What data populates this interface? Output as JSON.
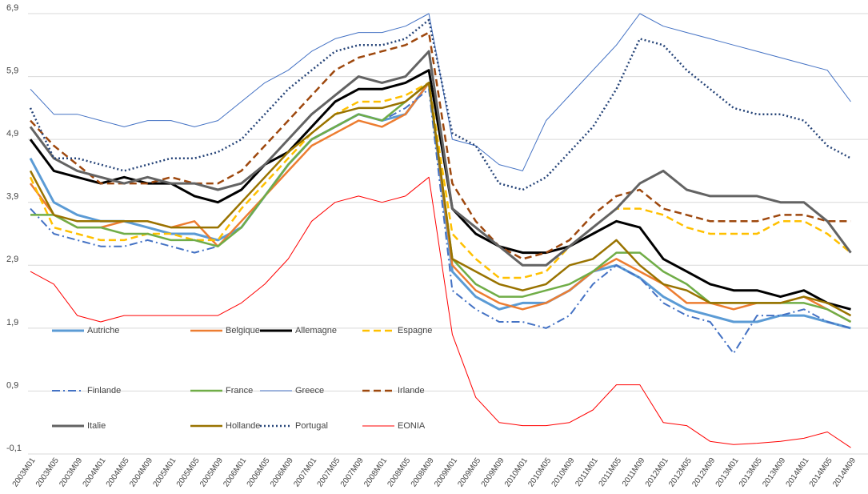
{
  "chart_data": {
    "type": "line",
    "categories": [
      "2003M01",
      "2003M05",
      "2003M09",
      "2004M01",
      "2004M05",
      "2004M09",
      "2005M01",
      "2005M05",
      "2005M09",
      "2006M01",
      "2006M05",
      "2006M09",
      "2007M01",
      "2007M05",
      "2007M09",
      "2008M01",
      "2008M05",
      "2008M09",
      "2009M01",
      "2009M05",
      "2009M09",
      "2010M01",
      "2010M05",
      "2010M09",
      "2011M01",
      "2011M05",
      "2011M09",
      "2012M01",
      "2012M05",
      "2012M09",
      "2013M01",
      "2013M05",
      "2013M09",
      "2014M01",
      "2014M05",
      "2014M09"
    ],
    "ylim": [
      -0.1,
      6.9
    ],
    "yticks": [
      {
        "value": -0.1,
        "label": "-0,1"
      },
      {
        "value": 0.9,
        "label": "0,9"
      },
      {
        "value": 1.9,
        "label": "1,9"
      },
      {
        "value": 2.9,
        "label": "2,9"
      },
      {
        "value": 3.9,
        "label": "3,9"
      },
      {
        "value": 4.9,
        "label": "4,9"
      },
      {
        "value": 5.9,
        "label": "5,9"
      },
      {
        "value": 6.9,
        "label": "6,9"
      }
    ],
    "grid": true,
    "series": [
      {
        "name": "Autriche",
        "color": "#5b9bd5",
        "width": 3,
        "dash": "solid",
        "values": [
          4.6,
          3.9,
          3.7,
          3.6,
          3.6,
          3.5,
          3.4,
          3.4,
          3.3,
          3.5,
          4.0,
          4.5,
          4.9,
          5.1,
          5.3,
          5.2,
          5.3,
          5.8,
          2.8,
          2.4,
          2.2,
          2.3,
          2.3,
          2.5,
          2.8,
          2.9,
          2.7,
          2.4,
          2.2,
          2.1,
          2.0,
          2.0,
          2.1,
          2.1,
          2.0,
          1.9
        ]
      },
      {
        "name": "Belgique",
        "color": "#ed7d31",
        "width": 2.5,
        "dash": "solid",
        "values": [
          4.2,
          3.7,
          3.5,
          3.5,
          3.6,
          3.6,
          3.5,
          3.6,
          3.2,
          3.6,
          4.0,
          4.4,
          4.8,
          5.0,
          5.2,
          5.1,
          5.3,
          5.8,
          2.9,
          2.5,
          2.3,
          2.2,
          2.3,
          2.5,
          2.8,
          3.0,
          2.8,
          2.6,
          2.3,
          2.3,
          2.2,
          2.3,
          2.3,
          2.4,
          2.2,
          2.0
        ]
      },
      {
        "name": "Allemagne",
        "color": "#000000",
        "width": 3,
        "dash": "solid",
        "values": [
          4.9,
          4.4,
          4.3,
          4.2,
          4.3,
          4.2,
          4.2,
          4.0,
          3.9,
          4.1,
          4.5,
          4.7,
          5.1,
          5.5,
          5.7,
          5.7,
          5.8,
          6.0,
          3.8,
          3.4,
          3.2,
          3.1,
          3.1,
          3.2,
          3.4,
          3.6,
          3.5,
          3.0,
          2.8,
          2.6,
          2.5,
          2.5,
          2.4,
          2.5,
          2.3,
          2.2
        ]
      },
      {
        "name": "Espagne",
        "color": "#ffc000",
        "width": 2.5,
        "dash": "dashed",
        "values": [
          4.3,
          3.5,
          3.4,
          3.3,
          3.3,
          3.4,
          3.4,
          3.3,
          3.3,
          3.8,
          4.2,
          4.6,
          5.0,
          5.3,
          5.5,
          5.5,
          5.6,
          5.8,
          3.4,
          3.0,
          2.7,
          2.7,
          2.8,
          3.2,
          3.5,
          3.8,
          3.8,
          3.7,
          3.5,
          3.4,
          3.4,
          3.4,
          3.6,
          3.6,
          3.4,
          3.1
        ]
      },
      {
        "name": "Finlande",
        "color": "#4472c4",
        "width": 2,
        "dash": "dashdot",
        "values": [
          3.8,
          3.4,
          3.3,
          3.2,
          3.2,
          3.3,
          3.2,
          3.1,
          3.2,
          3.5,
          4.0,
          4.5,
          4.9,
          5.1,
          5.3,
          5.2,
          5.4,
          5.7,
          2.5,
          2.2,
          2.0,
          2.0,
          1.9,
          2.1,
          2.6,
          2.9,
          2.7,
          2.3,
          2.1,
          2.0,
          1.5,
          2.1,
          2.1,
          2.2,
          2.0,
          1.9
        ]
      },
      {
        "name": "France",
        "color": "#70ad47",
        "width": 2.5,
        "dash": "solid",
        "values": [
          3.7,
          3.7,
          3.5,
          3.5,
          3.4,
          3.4,
          3.3,
          3.3,
          3.2,
          3.5,
          4.0,
          4.5,
          4.9,
          5.1,
          5.3,
          5.2,
          5.5,
          5.8,
          3.0,
          2.6,
          2.4,
          2.4,
          2.5,
          2.6,
          2.8,
          3.1,
          3.1,
          2.8,
          2.6,
          2.3,
          2.3,
          2.3,
          2.3,
          2.3,
          2.2,
          2.0
        ]
      },
      {
        "name": "Greece",
        "color": "#4472c4",
        "width": 1,
        "dash": "solid",
        "values": [
          5.7,
          5.3,
          5.3,
          5.2,
          5.1,
          5.2,
          5.2,
          5.1,
          5.2,
          5.5,
          5.8,
          6.0,
          6.3,
          6.5,
          6.6,
          6.6,
          6.7,
          6.9,
          4.9,
          4.8,
          4.5,
          4.4,
          5.2,
          5.6,
          6.0,
          6.4,
          6.9,
          6.7,
          6.6,
          6.5,
          6.4,
          6.3,
          6.2,
          6.1,
          6.0,
          5.5
        ]
      },
      {
        "name": "Irlande",
        "color": "#9e480e",
        "width": 2.5,
        "dash": "dashed",
        "values": [
          5.2,
          4.8,
          4.5,
          4.2,
          4.2,
          4.2,
          4.3,
          4.2,
          4.2,
          4.4,
          4.8,
          5.2,
          5.6,
          6.0,
          6.2,
          6.3,
          6.4,
          6.6,
          4.2,
          3.6,
          3.2,
          3.0,
          3.1,
          3.3,
          3.7,
          4.0,
          4.1,
          3.8,
          3.7,
          3.6,
          3.6,
          3.6,
          3.7,
          3.7,
          3.6,
          3.6
        ]
      },
      {
        "name": "Italie",
        "color": "#636363",
        "width": 3,
        "dash": "solid",
        "values": [
          5.1,
          4.6,
          4.4,
          4.3,
          4.2,
          4.3,
          4.2,
          4.2,
          4.1,
          4.2,
          4.5,
          4.9,
          5.3,
          5.6,
          5.9,
          5.8,
          5.9,
          6.3,
          3.8,
          3.5,
          3.2,
          2.9,
          2.9,
          3.2,
          3.5,
          3.8,
          4.2,
          4.4,
          4.1,
          4.0,
          4.0,
          4.0,
          3.9,
          3.9,
          3.6,
          3.1
        ]
      },
      {
        "name": "Hollande",
        "color": "#997300",
        "width": 2.5,
        "dash": "solid",
        "values": [
          4.4,
          3.7,
          3.6,
          3.6,
          3.6,
          3.6,
          3.5,
          3.5,
          3.5,
          3.9,
          4.3,
          4.7,
          5.0,
          5.3,
          5.4,
          5.4,
          5.5,
          5.8,
          3.0,
          2.8,
          2.6,
          2.5,
          2.6,
          2.9,
          3.0,
          3.3,
          2.9,
          2.6,
          2.5,
          2.3,
          2.3,
          2.3,
          2.3,
          2.4,
          2.3,
          2.1
        ]
      },
      {
        "name": "Portugal",
        "color": "#264478",
        "width": 2.5,
        "dash": "dotted",
        "values": [
          5.4,
          4.6,
          4.6,
          4.5,
          4.4,
          4.5,
          4.6,
          4.6,
          4.7,
          4.9,
          5.3,
          5.7,
          6.0,
          6.3,
          6.4,
          6.4,
          6.5,
          6.8,
          5.0,
          4.8,
          4.2,
          4.1,
          4.3,
          4.7,
          5.1,
          5.7,
          6.5,
          6.4,
          6.0,
          5.7,
          5.4,
          5.3,
          5.3,
          5.2,
          4.8,
          4.6
        ]
      },
      {
        "name": "EONIA",
        "color": "#ff0000",
        "width": 1,
        "dash": "solid",
        "values": [
          2.8,
          2.6,
          2.1,
          2.0,
          2.1,
          2.1,
          2.1,
          2.1,
          2.1,
          2.3,
          2.6,
          3.0,
          3.6,
          3.9,
          4.0,
          3.9,
          4.0,
          4.3,
          1.8,
          0.8,
          0.4,
          0.35,
          0.35,
          0.4,
          0.6,
          1.0,
          1.0,
          0.4,
          0.35,
          0.1,
          0.05,
          0.07,
          0.1,
          0.15,
          0.25,
          0.0
        ]
      }
    ]
  }
}
